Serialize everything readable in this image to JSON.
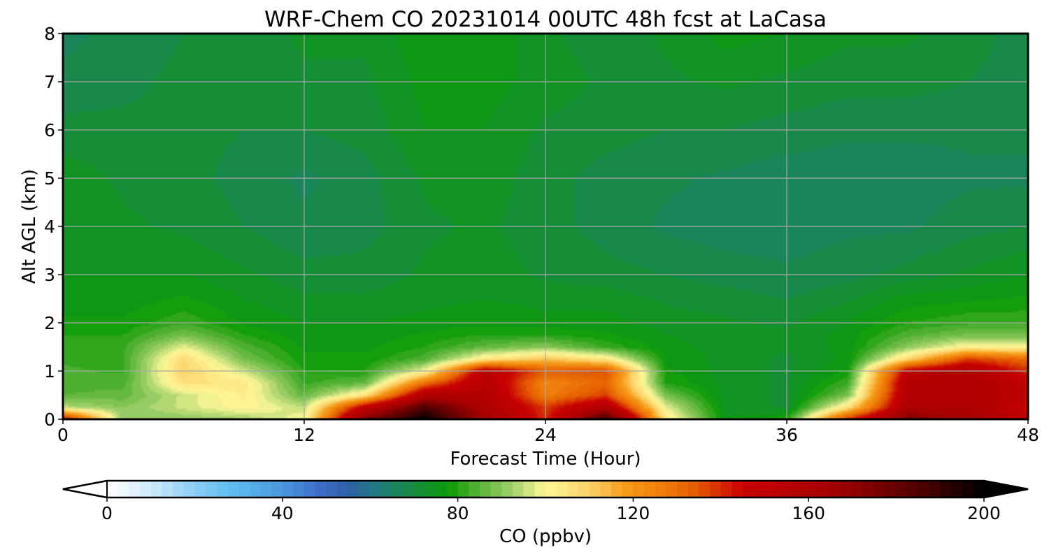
{
  "chart_data": {
    "type": "heatmap",
    "title": "WRF-Chem CO  20231014 00UTC 48h fcst at LaCasa",
    "xlabel": "Forecast Time (Hour)",
    "ylabel": "Alt AGL (km)",
    "xlim": [
      0,
      48
    ],
    "ylim": [
      0,
      8
    ],
    "x_ticks": [
      0,
      12,
      24,
      36,
      48
    ],
    "y_ticks": [
      0,
      1,
      2,
      3,
      4,
      5,
      6,
      7,
      8
    ],
    "grid": true,
    "x": [
      0,
      3,
      6,
      9,
      12,
      15,
      18,
      21,
      24,
      27,
      30,
      33,
      36,
      39,
      42,
      45,
      48
    ],
    "y": [
      0,
      0.25,
      0.5,
      0.75,
      1,
      1.25,
      1.5,
      1.75,
      2,
      2.5,
      3,
      4,
      5,
      6,
      7,
      8
    ],
    "z": [
      [
        150,
        90,
        90,
        92,
        100,
        175,
        200,
        165,
        140,
        190,
        105,
        75,
        80,
        140,
        175,
        165,
        150
      ],
      [
        94,
        90,
        96,
        102,
        95,
        150,
        185,
        160,
        138,
        158,
        98,
        74,
        72,
        105,
        160,
        160,
        148
      ],
      [
        85,
        86,
        96,
        103,
        86,
        105,
        158,
        158,
        126,
        138,
        88,
        74,
        72,
        88,
        158,
        160,
        152
      ],
      [
        84,
        84,
        106,
        104,
        82,
        86,
        130,
        156,
        124,
        132,
        80,
        74,
        72,
        82,
        156,
        160,
        150
      ],
      [
        83,
        82,
        110,
        96,
        80,
        80,
        100,
        154,
        134,
        136,
        78,
        74,
        72,
        78,
        150,
        158,
        140
      ],
      [
        82,
        82,
        108,
        88,
        78,
        78,
        84,
        104,
        112,
        104,
        77,
        74,
        72,
        76,
        108,
        138,
        130
      ],
      [
        81,
        82,
        98,
        84,
        77,
        77,
        80,
        86,
        90,
        82,
        76,
        74,
        73,
        76,
        90,
        102,
        100
      ],
      [
        80,
        80,
        88,
        80,
        76,
        76,
        78,
        80,
        80,
        78,
        75,
        74,
        73,
        76,
        84,
        88,
        88
      ],
      [
        78,
        78,
        82,
        77,
        75,
        75,
        76,
        77,
        76,
        76,
        74,
        73,
        72,
        75,
        80,
        82,
        82
      ],
      [
        76,
        76,
        78,
        75,
        73,
        73,
        74,
        75,
        74,
        74,
        72,
        71,
        70,
        72,
        76,
        77,
        78
      ],
      [
        75,
        75,
        75,
        73,
        71,
        71,
        73,
        74,
        72,
        71,
        70,
        69,
        68,
        69,
        71,
        73,
        75
      ],
      [
        75,
        73,
        72,
        70,
        68,
        69,
        72,
        73,
        71,
        69,
        67,
        66,
        66,
        67,
        67,
        69,
        70
      ],
      [
        74,
        72,
        71,
        69,
        67,
        69,
        73,
        74,
        71,
        69,
        68,
        67,
        66,
        66,
        66,
        67,
        67
      ],
      [
        71,
        71,
        71,
        70,
        70,
        71,
        75,
        75,
        72,
        71,
        70,
        70,
        69,
        68,
        68,
        68,
        68
      ],
      [
        68,
        69,
        71,
        71,
        72,
        72,
        76,
        76,
        74,
        72,
        72,
        73,
        72,
        71,
        71,
        70,
        69
      ],
      [
        67,
        68,
        70,
        71,
        73,
        73,
        77,
        77,
        73,
        71,
        73,
        76,
        75,
        73,
        73,
        71,
        69
      ]
    ],
    "colorbar": {
      "label": "CO  (ppbv)",
      "min": 0,
      "max": 200,
      "ticks": [
        "0",
        "40",
        "80",
        "120",
        "160",
        "200"
      ],
      "extend": "both",
      "stops": [
        [
          0,
          "#ffffff"
        ],
        [
          10,
          "#cfe9fb"
        ],
        [
          20,
          "#8ccdf5"
        ],
        [
          28,
          "#5ec0f2"
        ],
        [
          40,
          "#4a97dd"
        ],
        [
          48,
          "#3d6fc9"
        ],
        [
          55,
          "#2f5fa8"
        ],
        [
          62,
          "#1f7d7d"
        ],
        [
          70,
          "#168a3f"
        ],
        [
          78,
          "#0c9b08"
        ],
        [
          84,
          "#4fb02f"
        ],
        [
          92,
          "#9ccf6a"
        ],
        [
          100,
          "#fff898"
        ],
        [
          110,
          "#fcd26a"
        ],
        [
          118,
          "#f79e1a"
        ],
        [
          126,
          "#f07f0a"
        ],
        [
          134,
          "#e45d00"
        ],
        [
          145,
          "#c80000"
        ],
        [
          165,
          "#a60000"
        ],
        [
          185,
          "#500000"
        ],
        [
          200,
          "#000000"
        ]
      ]
    }
  }
}
